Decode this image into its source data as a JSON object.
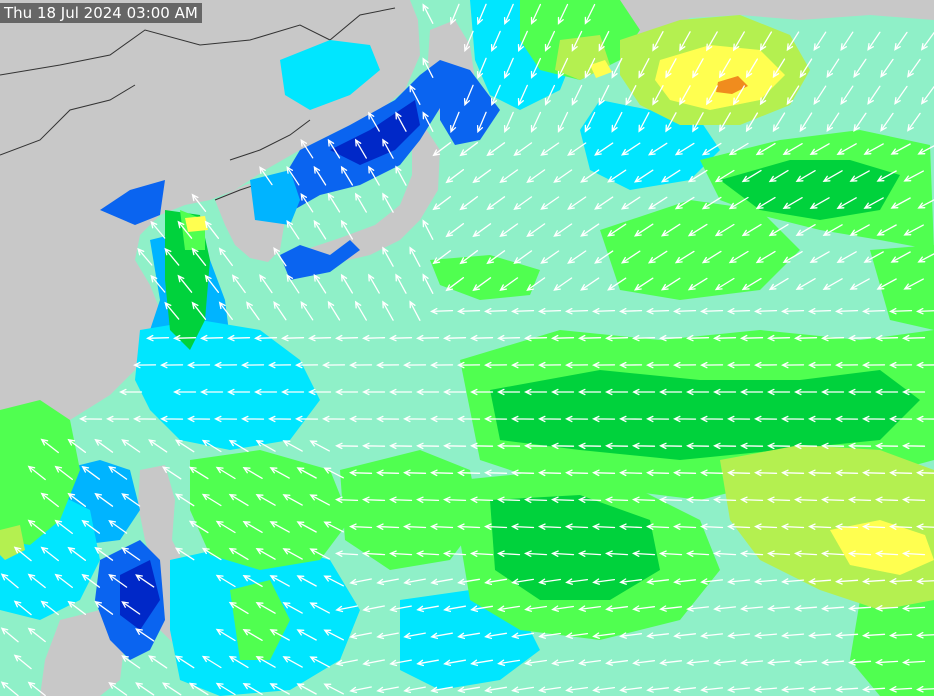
{
  "timestamp": "Thu 18 Jul 2024 03:00 AM",
  "colors": {
    "land": "#c8c8c8",
    "border": "#333333",
    "arrow": "#ffffff",
    "aquamarine": "#8ff0c8",
    "cyan": "#00e6ff",
    "light_blue": "#00b4ff",
    "blue": "#0a64f0",
    "deep_blue": "#0028c8",
    "light_green": "#50ff50",
    "green": "#00d23c",
    "yellow_green": "#b4f050",
    "yellow": "#ffff50",
    "orange": "#f08c1e",
    "timestamp_bg": "#666666",
    "timestamp_text": "#ffffff"
  },
  "icons": {
    "wind_arrow": "arrow-icon"
  }
}
